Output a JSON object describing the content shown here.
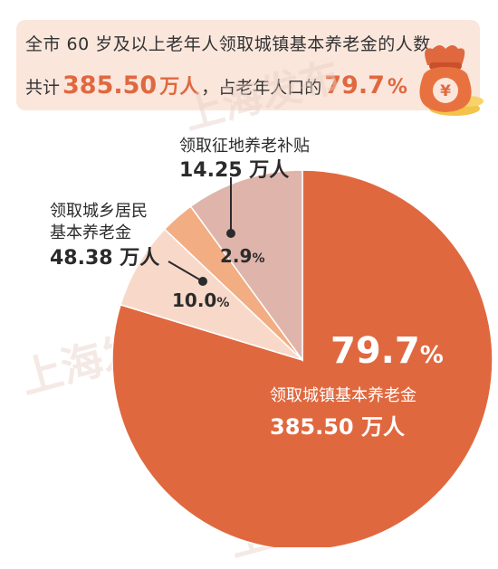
{
  "banner": {
    "line1": "全市 60 岁及以上老年人领取城镇基本养老金的人数",
    "prefix": "共计",
    "total_value": "385.50",
    "total_unit": "万人",
    "middle": "，占老年人口的",
    "share_value": "79.7",
    "share_unit": "%"
  },
  "watermark": "上海发布",
  "colors": {
    "urban": "#e0683f",
    "rural": "#dfb5ab",
    "land": "#f2ad82",
    "other": "#f8d9c9",
    "banner_bg": "#fbe6dc"
  },
  "chart_data": {
    "type": "pie",
    "slices": [
      {
        "label": "领取城镇基本养老金",
        "value": 79.7,
        "count": "385.50 万人",
        "color": "#e0683f",
        "pct_text": "79.7",
        "pct_unit": "%"
      },
      {
        "label": "",
        "value": 7.4,
        "color": "#f8d9c9"
      },
      {
        "label": "领取征地养老补贴",
        "value": 2.9,
        "count": "14.25 万人",
        "color": "#f2ad82",
        "pct_text": "2.9",
        "pct_unit": "%"
      },
      {
        "label": "领取城乡居民基本养老金",
        "value": 10.0,
        "count": "48.38 万人",
        "color": "#dfb5ab",
        "pct_text": "10.0",
        "pct_unit": "%"
      }
    ]
  },
  "labels": {
    "urban_line1": "领取城镇基本养老金",
    "urban_line2": "385.50 万人",
    "land_line1": "领取征地养老补贴",
    "land_line2": "14.25 万人",
    "rural_line1": "领取城乡居民",
    "rural_line2": "基本养老金",
    "rural_line3": "48.38 万人"
  }
}
